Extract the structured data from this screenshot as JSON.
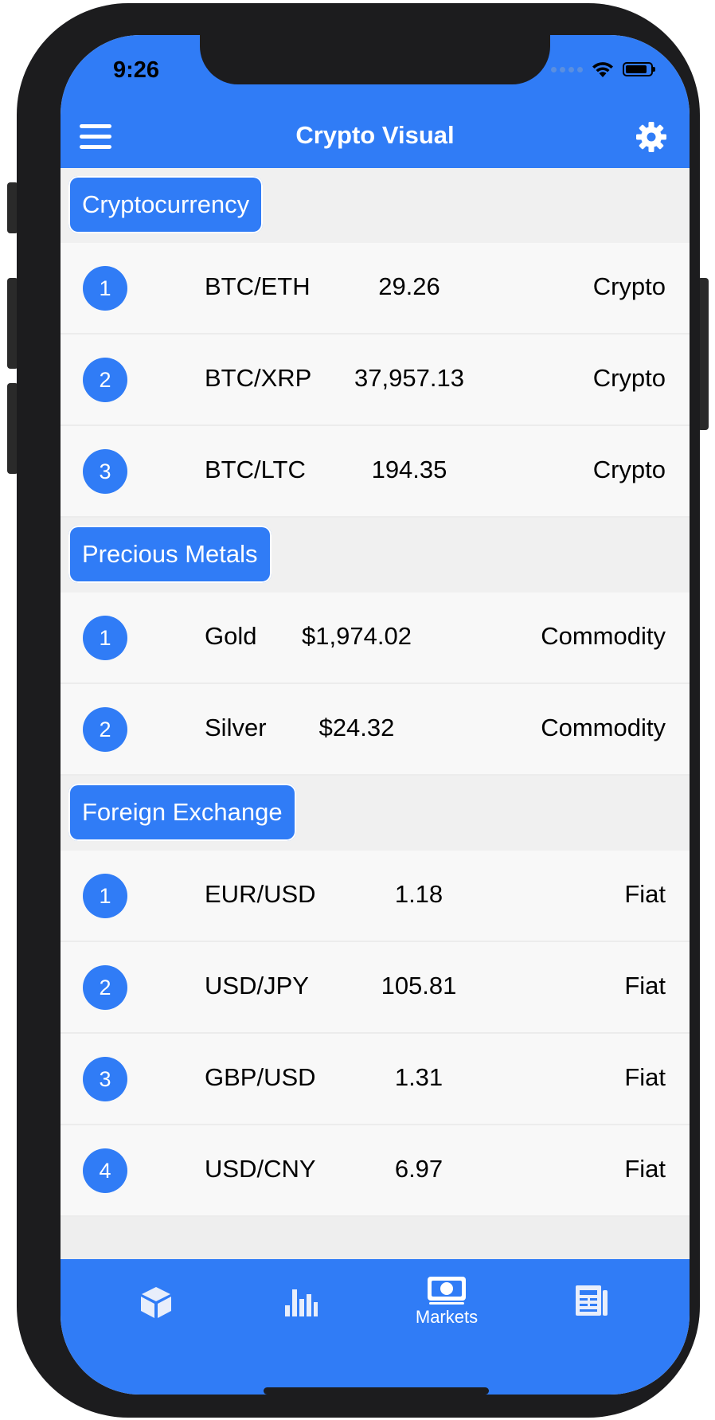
{
  "status_bar": {
    "time": "9:26"
  },
  "nav": {
    "title": "Crypto Visual"
  },
  "sections": [
    {
      "title": "Cryptocurrency",
      "rows": [
        {
          "rank": "1",
          "name": "BTC/ETH",
          "price": "29.26",
          "type": "Crypto"
        },
        {
          "rank": "2",
          "name": "BTC/XRP",
          "price": "37,957.13",
          "type": "Crypto"
        },
        {
          "rank": "3",
          "name": "BTC/LTC",
          "price": "194.35",
          "type": "Crypto"
        }
      ]
    },
    {
      "title": "Precious Metals",
      "rows": [
        {
          "rank": "1",
          "name": "Gold",
          "price": "$1,974.02",
          "type": "Commodity"
        },
        {
          "rank": "2",
          "name": "Silver",
          "price": "$24.32",
          "type": "Commodity"
        }
      ]
    },
    {
      "title": "Foreign Exchange",
      "rows": [
        {
          "rank": "1",
          "name": "EUR/USD",
          "price": "1.18",
          "type": "Fiat"
        },
        {
          "rank": "2",
          "name": "USD/JPY",
          "price": "105.81",
          "type": "Fiat"
        },
        {
          "rank": "3",
          "name": "GBP/USD",
          "price": "1.31",
          "type": "Fiat"
        },
        {
          "rank": "4",
          "name": "USD/CNY",
          "price": "6.97",
          "type": "Fiat"
        }
      ]
    }
  ],
  "tabbar": {
    "tabs": [
      {
        "icon": "cube-icon",
        "label": ""
      },
      {
        "icon": "bar-chart-icon",
        "label": ""
      },
      {
        "icon": "money-icon",
        "label": "Markets"
      },
      {
        "icon": "newspaper-icon",
        "label": ""
      }
    ]
  },
  "colors": {
    "accent": "#307cf6",
    "frame": "#1c1c1e"
  }
}
